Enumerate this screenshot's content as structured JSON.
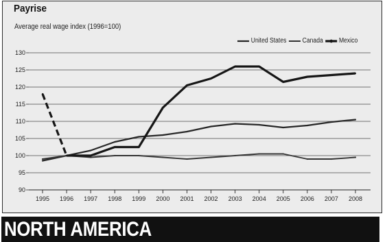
{
  "chart_data": {
    "type": "line",
    "title": "Payrise",
    "subtitle": "Average real wage index (1996=100)",
    "xlabel": "",
    "ylabel": "",
    "x": [
      "1995",
      "1996",
      "1997",
      "1998",
      "1999",
      "2000",
      "2001",
      "2002",
      "2003",
      "2004",
      "2005",
      "2006",
      "2007",
      "2008"
    ],
    "ylim": [
      90,
      130
    ],
    "y_ticks": [
      90,
      95,
      100,
      105,
      110,
      115,
      120,
      125,
      130
    ],
    "grid": true,
    "legend": "top-right",
    "series": [
      {
        "name": "United States",
        "color": "#262626",
        "values": [
          98.5,
          100,
          101.5,
          104,
          105.5,
          106,
          107,
          108.5,
          109.3,
          109,
          108.2,
          108.8,
          109.8,
          110.5
        ]
      },
      {
        "name": "Canada",
        "color": "#333333",
        "values": [
          99,
          100,
          99.5,
          100,
          100,
          99.5,
          99,
          99.5,
          100,
          100.5,
          100.5,
          99,
          99,
          99.5
        ]
      },
      {
        "name": "Mexico",
        "color": "#161616",
        "values": [
          118,
          100,
          100,
          102.5,
          102.5,
          114,
          120.5,
          122.5,
          126,
          126,
          121.5,
          123,
          123.5,
          124
        ]
      }
    ]
  },
  "banner": {
    "label": "NORTH AMERICA"
  }
}
